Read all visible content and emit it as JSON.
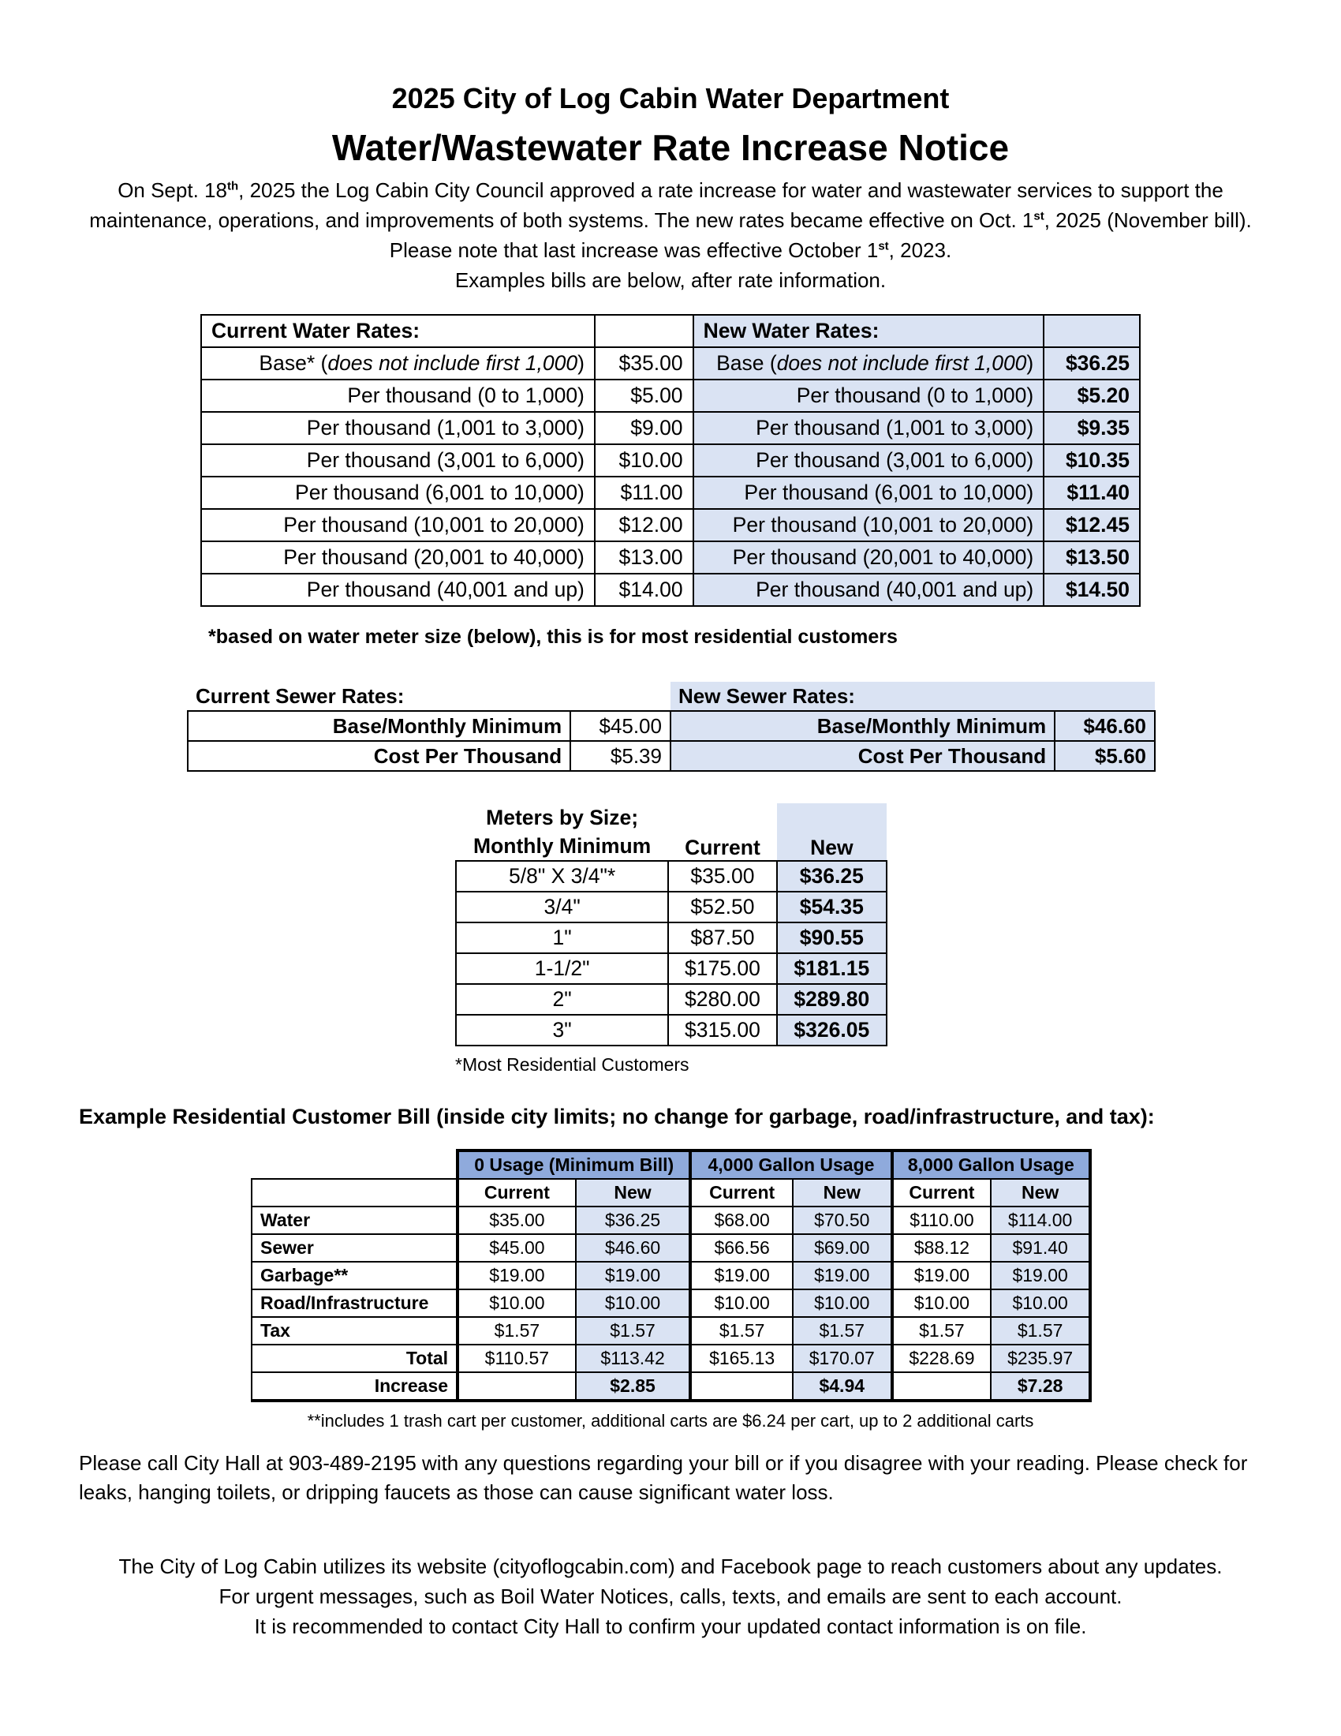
{
  "header": {
    "title_line1": "2025 City of Log Cabin Water Department",
    "title_line2": "Water/Wastewater Rate Increase Notice"
  },
  "intro": {
    "p1_a": "On Sept. 18",
    "p1_sup1": "th",
    "p1_b": ", 2025 the Log Cabin City Council approved a rate increase for water and wastewater services to support the maintenance, operations, and improvements of both systems. The new rates became effective on Oct. 1",
    "p1_sup2": "st",
    "p1_c": ", 2025 (November bill). Please note that last increase was effective October 1",
    "p1_sup3": "st",
    "p1_d": ", 2023.",
    "p2": "Examples bills are below, after rate information."
  },
  "water_rates": {
    "current_header": "Current Water Rates:",
    "new_header": "New Water Rates:",
    "base_label_a": "Base* (",
    "base_label_italic": "does not include first 1,000",
    "base_label_b": ")",
    "new_base_label_a": "Base (",
    "new_base_label_b": ")",
    "rows": [
      {
        "current_label": "Base* (does not include first 1,000)",
        "current": "$35.00",
        "new_label": "Base (does not include first 1,000)",
        "new": "$36.25"
      },
      {
        "current_label": "Per thousand (0 to 1,000)",
        "current": "$5.00",
        "new_label": "Per thousand (0 to 1,000)",
        "new": "$5.20"
      },
      {
        "current_label": "Per thousand (1,001 to 3,000)",
        "current": "$9.00",
        "new_label": "Per thousand (1,001 to 3,000)",
        "new": "$9.35"
      },
      {
        "current_label": "Per thousand (3,001 to 6,000)",
        "current": "$10.00",
        "new_label": "Per thousand (3,001 to 6,000)",
        "new": "$10.35"
      },
      {
        "current_label": "Per thousand (6,001 to 10,000)",
        "current": "$11.00",
        "new_label": "Per thousand (6,001 to 10,000)",
        "new": "$11.40"
      },
      {
        "current_label": "Per thousand (10,001 to 20,000)",
        "current": "$12.00",
        "new_label": "Per thousand (10,001 to 20,000)",
        "new": "$12.45"
      },
      {
        "current_label": "Per thousand (20,001 to 40,000)",
        "current": "$13.00",
        "new_label": "Per thousand (20,001 to 40,000)",
        "new": "$13.50"
      },
      {
        "current_label": "Per thousand (40,001 and up)",
        "current": "$14.00",
        "new_label": "Per thousand (40,001 and up)",
        "new": "$14.50"
      }
    ],
    "footnote": "*based on water meter size (below), this is for most residential customers"
  },
  "sewer_rates": {
    "current_header": "Current Sewer Rates:",
    "new_header": "New Sewer Rates:",
    "rows": [
      {
        "label": "Base/Monthly Minimum",
        "current": "$45.00",
        "new": "$46.60"
      },
      {
        "label": "Cost Per Thousand",
        "current": "$5.39",
        "new": "$5.60"
      }
    ]
  },
  "meters": {
    "header_line1": "Meters by Size;",
    "header_line2": "Monthly Minimum",
    "current_header": "Current",
    "new_header": "New",
    "rows": [
      {
        "size": "5/8\" X 3/4\"*",
        "current": "$35.00",
        "new": "$36.25"
      },
      {
        "size": "3/4\"",
        "current": "$52.50",
        "new": "$54.35"
      },
      {
        "size": "1\"",
        "current": "$87.50",
        "new": "$90.55"
      },
      {
        "size": "1-1/2\"",
        "current": "$175.00",
        "new": "$181.15"
      },
      {
        "size": "2\"",
        "current": "$280.00",
        "new": "$289.80"
      },
      {
        "size": "3\"",
        "current": "$315.00",
        "new": "$326.05"
      }
    ],
    "footnote": "*Most Residential Customers"
  },
  "example_bill": {
    "heading": "Example Residential Customer Bill (inside city limits; no change for garbage, road/infrastructure, and tax):",
    "groups": [
      "0 Usage (Minimum Bill)",
      "4,000 Gallon Usage",
      "8,000 Gallon Usage"
    ],
    "subheaders": [
      "Current",
      "New",
      "Current",
      "New",
      "Current",
      "New"
    ],
    "rows": [
      {
        "label": "Water",
        "values": [
          "$35.00",
          "$36.25",
          "$68.00",
          "$70.50",
          "$110.00",
          "$114.00"
        ]
      },
      {
        "label": "Sewer",
        "values": [
          "$45.00",
          "$46.60",
          "$66.56",
          "$69.00",
          "$88.12",
          "$91.40"
        ]
      },
      {
        "label": "Garbage**",
        "values": [
          "$19.00",
          "$19.00",
          "$19.00",
          "$19.00",
          "$19.00",
          "$19.00"
        ]
      },
      {
        "label": "Road/Infrastructure",
        "values": [
          "$10.00",
          "$10.00",
          "$10.00",
          "$10.00",
          "$10.00",
          "$10.00"
        ]
      },
      {
        "label": "Tax",
        "values": [
          "$1.57",
          "$1.57",
          "$1.57",
          "$1.57",
          "$1.57",
          "$1.57"
        ]
      },
      {
        "label": "Total",
        "values": [
          "$110.57",
          "$113.42",
          "$165.13",
          "$170.07",
          "$228.69",
          "$235.97"
        ]
      }
    ],
    "increase_label": "Increase",
    "increase_values": [
      "$2.85",
      "$4.94",
      "$7.28"
    ],
    "footnote": "**includes 1 trash cart per customer, additional carts are $6.24 per cart, up to 2 additional carts"
  },
  "contact": {
    "paragraph": "Please call City Hall at 903-489-2195 with any questions regarding your bill or if you disagree with your reading. Please check for leaks, hanging toilets, or dripping faucets as those can cause significant water loss."
  },
  "closing": {
    "line1": "The City of Log Cabin utilizes its website (cityoflogcabin.com) and Facebook page to reach customers about any updates.",
    "line2": "For urgent messages, such as Boil Water Notices, calls, texts, and emails are sent to each account.",
    "line3": "It is recommended to contact City Hall to confirm your updated contact information is on file."
  }
}
